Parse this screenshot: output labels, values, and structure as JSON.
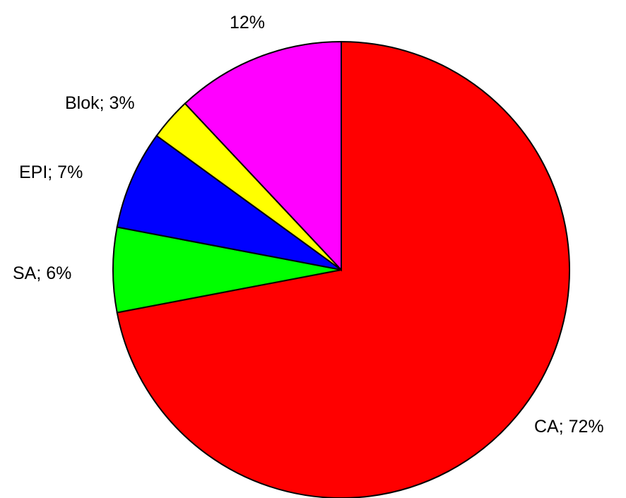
{
  "chart_data": {
    "type": "pie",
    "title": "",
    "start": "top, clockwise",
    "slices": [
      {
        "name": "CA",
        "label": "CA; 72%",
        "value": 72,
        "color": "#ff0000"
      },
      {
        "name": "SA",
        "label": "SA; 6%",
        "value": 6,
        "color": "#00ff00"
      },
      {
        "name": "EPI",
        "label": "EPI; 7%",
        "value": 7,
        "color": "#0000ff"
      },
      {
        "name": "Blok",
        "label": "Blok; 3%",
        "value": 3,
        "color": "#ffff00"
      },
      {
        "name": "",
        "label": "12%",
        "value": 12,
        "color": "#ff00ff"
      }
    ]
  }
}
